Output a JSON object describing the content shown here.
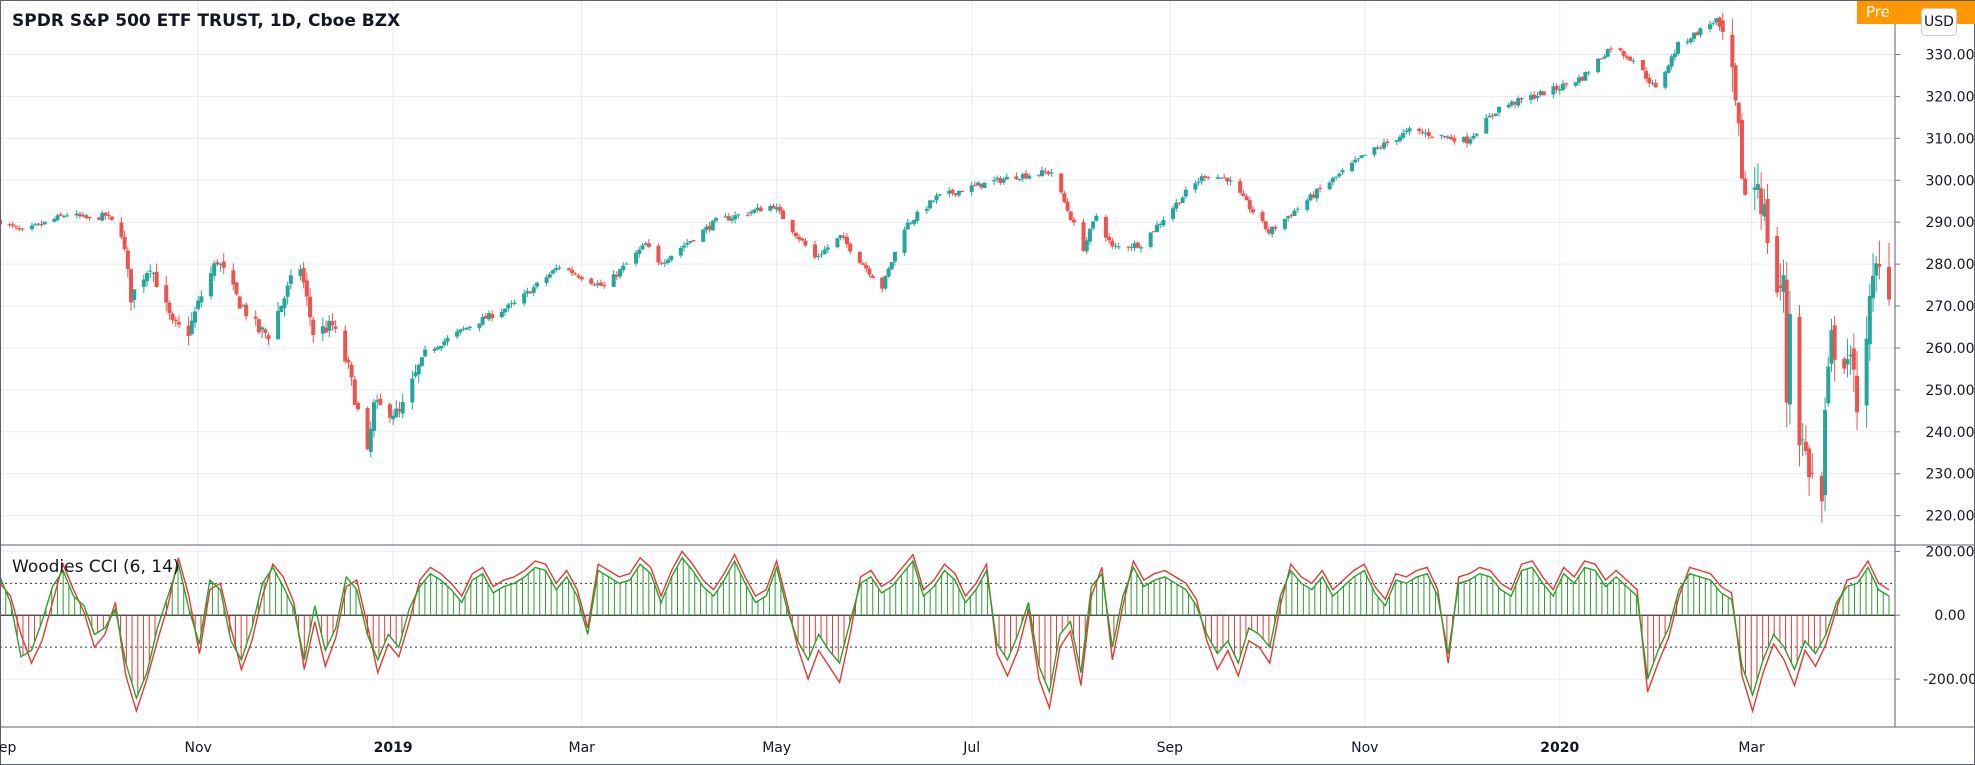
{
  "header": {
    "title": "SPDR S&P 500 ETF TRUST, 1D, Cboe BZX",
    "pre_label": "Pre",
    "currency": "USD"
  },
  "indicator": {
    "title": "Woodies CCI (6, 14)"
  },
  "colors": {
    "up": "#26a69a",
    "down": "#ef5350",
    "cci_line": "#2ca02c",
    "turbo_line": "#e53935",
    "hist_up": "#2ca02c",
    "hist_down": "#e53935",
    "grid": "#e8ecf2",
    "axis": "#787b86",
    "badge": "#ff9800"
  },
  "chart_data": [
    {
      "type": "candlestick",
      "title": "SPDR S&P 500 ETF TRUST, 1D, Cboe BZX",
      "x_labels": [
        "Sep",
        "Nov",
        "2019",
        "Mar",
        "May",
        "Jul",
        "Sep",
        "Nov",
        "2020",
        "Mar"
      ],
      "y_ticks": [
        "220.00",
        "230.00",
        "240.00",
        "250.00",
        "260.00",
        "270.00",
        "280.00",
        "290.00",
        "300.00",
        "310.00",
        "320.00",
        "330.00"
      ],
      "ylim": [
        213,
        343
      ],
      "xlim": [
        "2018-08-31",
        "2020-04-13"
      ],
      "grid": true,
      "anchors": [
        {
          "d": "2018-08-31",
          "v": 290.3
        },
        {
          "d": "2018-09-07",
          "v": 287.6
        },
        {
          "d": "2018-09-21",
          "v": 291.9
        },
        {
          "d": "2018-09-28",
          "v": 290.7
        },
        {
          "d": "2018-10-03",
          "v": 291.6
        },
        {
          "d": "2018-10-08",
          "v": 288.0
        },
        {
          "d": "2018-10-11",
          "v": 272.2
        },
        {
          "d": "2018-10-17",
          "v": 280.0
        },
        {
          "d": "2018-10-24",
          "v": 265.3
        },
        {
          "d": "2018-10-29",
          "v": 263.9
        },
        {
          "d": "2018-11-02",
          "v": 272.5
        },
        {
          "d": "2018-11-07",
          "v": 281.0
        },
        {
          "d": "2018-11-13",
          "v": 272.0
        },
        {
          "d": "2018-11-20",
          "v": 264.1
        },
        {
          "d": "2018-11-23",
          "v": 263.3
        },
        {
          "d": "2018-11-30",
          "v": 275.7
        },
        {
          "d": "2018-12-03",
          "v": 279.3
        },
        {
          "d": "2018-12-07",
          "v": 263.6
        },
        {
          "d": "2018-12-13",
          "v": 265.3
        },
        {
          "d": "2018-12-18",
          "v": 255.1
        },
        {
          "d": "2018-12-24",
          "v": 234.3
        },
        {
          "d": "2018-12-26",
          "v": 246.2
        },
        {
          "d": "2019-01-03",
          "v": 244.2
        },
        {
          "d": "2019-01-11",
          "v": 258.9
        },
        {
          "d": "2019-01-25",
          "v": 265.3
        },
        {
          "d": "2019-02-08",
          "v": 270.5
        },
        {
          "d": "2019-02-22",
          "v": 279.5
        },
        {
          "d": "2019-03-08",
          "v": 274.5
        },
        {
          "d": "2019-03-21",
          "v": 284.7
        },
        {
          "d": "2019-03-25",
          "v": 280.0
        },
        {
          "d": "2019-04-12",
          "v": 290.2
        },
        {
          "d": "2019-04-30",
          "v": 294.0
        },
        {
          "d": "2019-05-13",
          "v": 281.5
        },
        {
          "d": "2019-05-21",
          "v": 286.5
        },
        {
          "d": "2019-06-03",
          "v": 274.5
        },
        {
          "d": "2019-06-10",
          "v": 288.9
        },
        {
          "d": "2019-06-20",
          "v": 295.9
        },
        {
          "d": "2019-07-03",
          "v": 298.8
        },
        {
          "d": "2019-07-15",
          "v": 301.0
        },
        {
          "d": "2019-07-26",
          "v": 302.0
        },
        {
          "d": "2019-08-05",
          "v": 283.8
        },
        {
          "d": "2019-08-09",
          "v": 291.6
        },
        {
          "d": "2019-08-14",
          "v": 283.9
        },
        {
          "d": "2019-08-23",
          "v": 284.8
        },
        {
          "d": "2019-09-06",
          "v": 297.0
        },
        {
          "d": "2019-09-12",
          "v": 301.3
        },
        {
          "d": "2019-09-19",
          "v": 300.4
        },
        {
          "d": "2019-10-02",
          "v": 287.6
        },
        {
          "d": "2019-10-18",
          "v": 297.8
        },
        {
          "d": "2019-11-01",
          "v": 306.0
        },
        {
          "d": "2019-11-15",
          "v": 311.8
        },
        {
          "d": "2019-12-03",
          "v": 309.5
        },
        {
          "d": "2019-12-13",
          "v": 317.3
        },
        {
          "d": "2019-12-31",
          "v": 321.9
        },
        {
          "d": "2020-01-08",
          "v": 324.5
        },
        {
          "d": "2020-01-17",
          "v": 331.9
        },
        {
          "d": "2020-01-24",
          "v": 328.8
        },
        {
          "d": "2020-01-31",
          "v": 321.7
        },
        {
          "d": "2020-02-07",
          "v": 332.2
        },
        {
          "d": "2020-02-19",
          "v": 338.3
        },
        {
          "d": "2020-02-21",
          "v": 333.5
        },
        {
          "d": "2020-02-24",
          "v": 322.4
        },
        {
          "d": "2020-02-28",
          "v": 296.3
        },
        {
          "d": "2020-03-03",
          "v": 300.2
        },
        {
          "d": "2020-03-09",
          "v": 274.2
        },
        {
          "d": "2020-03-11",
          "v": 274.4
        },
        {
          "d": "2020-03-12",
          "v": 248.1
        },
        {
          "d": "2020-03-13",
          "v": 269.3
        },
        {
          "d": "2020-03-16",
          "v": 239.9
        },
        {
          "d": "2020-03-20",
          "v": 228.8
        },
        {
          "d": "2020-03-23",
          "v": 222.9
        },
        {
          "d": "2020-03-24",
          "v": 243.2
        },
        {
          "d": "2020-03-26",
          "v": 261.2
        },
        {
          "d": "2020-03-31",
          "v": 257.8
        },
        {
          "d": "2020-04-03",
          "v": 248.2
        },
        {
          "d": "2020-04-06",
          "v": 264.9
        },
        {
          "d": "2020-04-09",
          "v": 278.2
        },
        {
          "d": "2020-04-13",
          "v": 275.7
        }
      ]
    },
    {
      "type": "line",
      "title": "Woodies CCI (6, 14)",
      "y_ticks": [
        "200.00",
        "0.00",
        "-200.00"
      ],
      "ylim": [
        -350,
        220
      ],
      "reference_lines": [
        100,
        0,
        -100
      ],
      "series": [
        {
          "name": "CCI",
          "values": [
            120,
            40,
            -130,
            -110,
            -20,
            90,
            140,
            60,
            30,
            -60,
            -40,
            20,
            -150,
            -260,
            -180,
            -40,
            60,
            160,
            20,
            -90,
            110,
            80,
            -80,
            -140,
            -40,
            100,
            150,
            90,
            20,
            -140,
            30,
            -110,
            -40,
            120,
            80,
            -60,
            -140,
            -60,
            -100,
            20,
            90,
            130,
            110,
            80,
            40,
            110,
            130,
            70,
            90,
            100,
            120,
            150,
            140,
            80,
            120,
            60,
            -60,
            140,
            120,
            100,
            110,
            160,
            130,
            40,
            120,
            180,
            140,
            90,
            60,
            110,
            170,
            100,
            40,
            60,
            150,
            20,
            -80,
            -140,
            -60,
            -110,
            -150,
            -20,
            100,
            120,
            70,
            90,
            130,
            170,
            60,
            90,
            140,
            110,
            40,
            80,
            140,
            -90,
            -140,
            -60,
            40,
            -160,
            -240,
            -60,
            -20,
            -180,
            90,
            130,
            -100,
            60,
            150,
            90,
            110,
            120,
            100,
            80,
            30,
            -60,
            -120,
            -80,
            -150,
            -40,
            -60,
            -100,
            60,
            140,
            100,
            80,
            120,
            60,
            90,
            120,
            140,
            70,
            30,
            110,
            100,
            120,
            130,
            60,
            -120,
            100,
            110,
            130,
            120,
            80,
            60,
            140,
            150,
            100,
            60,
            130,
            100,
            150,
            140,
            90,
            120,
            90,
            60,
            -200,
            -110,
            -40,
            80,
            130,
            120,
            110,
            70,
            50,
            -160,
            -250,
            -140,
            -60,
            -100,
            -170,
            -80,
            -120,
            -60,
            40,
            90,
            100,
            150,
            80,
            60
          ]
        },
        {
          "name": "Turbo CCI",
          "values": [
            100,
            60,
            -60,
            -150,
            -80,
            40,
            160,
            80,
            10,
            -100,
            -60,
            40,
            -190,
            -300,
            -200,
            -80,
            30,
            180,
            60,
            -120,
            80,
            100,
            -40,
            -170,
            -80,
            60,
            160,
            120,
            40,
            -170,
            -20,
            -160,
            -70,
            90,
            110,
            -30,
            -180,
            -90,
            -130,
            -20,
            110,
            150,
            130,
            100,
            60,
            130,
            150,
            90,
            110,
            120,
            140,
            170,
            160,
            100,
            140,
            80,
            -40,
            160,
            140,
            120,
            130,
            180,
            150,
            60,
            140,
            200,
            160,
            110,
            80,
            130,
            190,
            120,
            60,
            80,
            170,
            40,
            -100,
            -200,
            -110,
            -160,
            -210,
            -60,
            120,
            140,
            90,
            110,
            150,
            190,
            80,
            110,
            160,
            130,
            60,
            100,
            160,
            -120,
            -190,
            -110,
            20,
            -200,
            -290,
            -100,
            -50,
            -220,
            60,
            150,
            -140,
            30,
            170,
            110,
            130,
            140,
            120,
            100,
            50,
            -80,
            -170,
            -110,
            -190,
            -80,
            -100,
            -150,
            30,
            160,
            120,
            100,
            140,
            80,
            110,
            140,
            160,
            90,
            50,
            130,
            120,
            140,
            150,
            80,
            -150,
            120,
            130,
            150,
            140,
            100,
            80,
            160,
            170,
            120,
            80,
            150,
            120,
            170,
            160,
            110,
            140,
            110,
            80,
            -240,
            -150,
            -70,
            60,
            150,
            140,
            130,
            90,
            70,
            -190,
            -300,
            -180,
            -90,
            -140,
            -220,
            -110,
            -160,
            -90,
            20,
            110,
            120,
            170,
            100,
            80
          ]
        }
      ]
    }
  ]
}
